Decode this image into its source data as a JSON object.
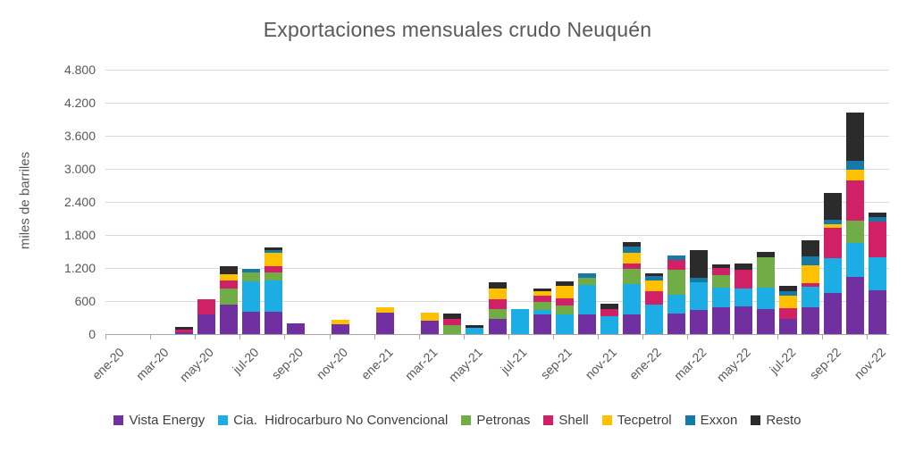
{
  "chart_data": {
    "type": "bar",
    "variant": "stacked",
    "title": "Exportaciones mensuales crudo Neuquén",
    "ylabel": "miles de barriles",
    "xlabel": "",
    "ylim": [
      0,
      4800
    ],
    "ytick_step": 600,
    "ytick_labels": [
      "0",
      "600",
      "1.200",
      "1.800",
      "2.400",
      "3.000",
      "3.600",
      "4.200",
      "4.800"
    ],
    "grid": "horizontal",
    "legend_position": "bottom",
    "categories": [
      "ene-20",
      "feb-20",
      "mar-20",
      "abr-20",
      "may-20",
      "jun-20",
      "jul-20",
      "ago-20",
      "sep-20",
      "oct-20",
      "nov-20",
      "dic-20",
      "ene-21",
      "feb-21",
      "mar-21",
      "abr-21",
      "may-21",
      "jun-21",
      "jul-21",
      "ago-21",
      "sep-21",
      "oct-21",
      "nov-21",
      "dic-21",
      "ene-22",
      "feb-22",
      "mar-22",
      "abr-22",
      "may-22",
      "jun-22",
      "jul-22",
      "ago-22",
      "sep-22",
      "oct-22",
      "nov-22"
    ],
    "x_tick_labels": [
      "ene-20",
      "mar-20",
      "may-20",
      "jul-20",
      "sep-20",
      "nov-20",
      "ene-21",
      "mar-21",
      "may-21",
      "jul-21",
      "sep-21",
      "nov-21",
      "ene-22",
      "mar-22",
      "may-22",
      "jul-22",
      "sep-22",
      "nov-22"
    ],
    "series": [
      {
        "name": "Vista Energy",
        "color": "#7030A0",
        "values": [
          0,
          0,
          0,
          35,
          350,
          540,
          400,
          400,
          200,
          0,
          185,
          0,
          390,
          0,
          250,
          0,
          0,
          280,
          0,
          360,
          0,
          355,
          0,
          360,
          0,
          375,
          435,
          485,
          495,
          455,
          280,
          480,
          745,
          1040,
          790
        ]
      },
      {
        "name": "Cia.  Hidrocarburo No Convencional",
        "color": "#1CADE4",
        "values": [
          0,
          0,
          0,
          0,
          0,
          0,
          560,
          570,
          0,
          0,
          0,
          0,
          0,
          0,
          0,
          0,
          120,
          0,
          450,
          80,
          350,
          545,
          330,
          550,
          535,
          340,
          500,
          360,
          335,
          395,
          0,
          380,
          630,
          615,
          610
        ]
      },
      {
        "name": "Petronas",
        "color": "#70AD47",
        "values": [
          0,
          0,
          0,
          0,
          0,
          285,
          160,
          150,
          0,
          0,
          0,
          0,
          0,
          0,
          0,
          165,
          0,
          170,
          0,
          145,
          175,
          115,
          0,
          275,
          0,
          455,
          0,
          220,
          0,
          545,
          0,
          0,
          0,
          405,
          0
        ]
      },
      {
        "name": "Shell",
        "color": "#D02166",
        "values": [
          0,
          0,
          0,
          45,
          280,
          150,
          0,
          120,
          0,
          0,
          0,
          0,
          0,
          0,
          0,
          110,
          0,
          175,
          0,
          110,
          125,
          0,
          130,
          90,
          250,
          175,
          0,
          135,
          340,
          0,
          190,
          60,
          560,
          730,
          640
        ]
      },
      {
        "name": "Tecpetrol",
        "color": "#FFC000",
        "values": [
          0,
          0,
          0,
          0,
          0,
          110,
          0,
          230,
          0,
          0,
          80,
          0,
          100,
          0,
          140,
          0,
          0,
          210,
          0,
          80,
          230,
          0,
          0,
          195,
          190,
          0,
          0,
          0,
          0,
          0,
          230,
          330,
          60,
          190,
          0
        ]
      },
      {
        "name": "Exxon",
        "color": "#1779A6",
        "values": [
          0,
          0,
          0,
          0,
          0,
          0,
          60,
          50,
          0,
          0,
          0,
          0,
          0,
          0,
          0,
          0,
          0,
          0,
          0,
          0,
          0,
          85,
          0,
          115,
          85,
          85,
          85,
          0,
          0,
          0,
          80,
          160,
          85,
          160,
          85
        ]
      },
      {
        "name": "Resto",
        "color": "#2B2B2B",
        "values": [
          0,
          0,
          0,
          50,
          0,
          145,
          0,
          50,
          0,
          0,
          0,
          0,
          0,
          0,
          0,
          100,
          45,
          100,
          0,
          50,
          70,
          0,
          85,
          85,
          45,
          0,
          500,
          65,
          110,
          105,
          90,
          290,
          480,
          890,
          85
        ]
      }
    ]
  }
}
